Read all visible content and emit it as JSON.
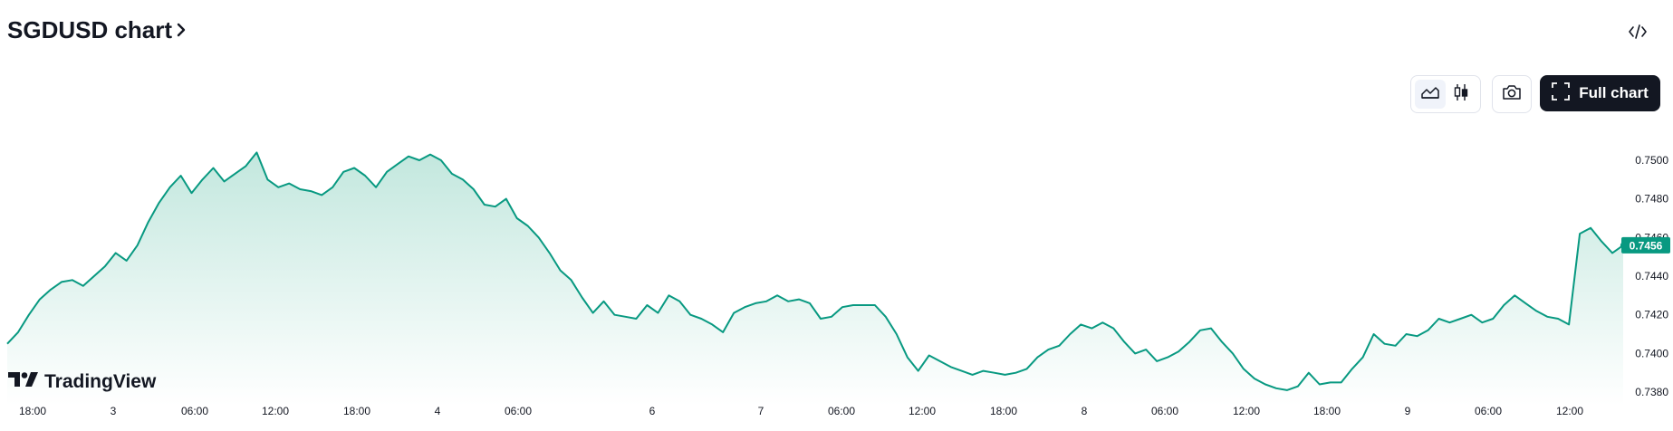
{
  "header": {
    "title": "SGDUSD chart",
    "title_chevron_icon": "chevron-right-icon",
    "embed_icon": "code-icon"
  },
  "toolbar": {
    "area_icon": "area-chart-icon",
    "candles_icon": "candlestick-icon",
    "snapshot_icon": "camera-icon",
    "full_chart_label": "Full chart",
    "full_chart_icon": "fullscreen-icon"
  },
  "brand": {
    "name": "TradingView",
    "logo_icon": "tradingview-logo-icon"
  },
  "colors": {
    "line": "#089981",
    "area_top": "#bfe6dc",
    "area_bottom": "#ffffff",
    "badge": "#089981"
  },
  "chart_data": {
    "type": "area",
    "series": [
      {
        "values": [
          0.7405,
          0.7411,
          0.742,
          0.7428,
          0.7433,
          0.7437,
          0.7438,
          0.7435,
          0.744,
          0.7445,
          0.7452,
          0.7448,
          0.7456,
          0.7468,
          0.7478,
          0.7486,
          0.7492,
          0.7483,
          0.749,
          0.7496,
          0.7489,
          0.7493,
          0.7497,
          0.7504,
          0.749,
          0.7486,
          0.7488,
          0.7485,
          0.7484,
          0.7482,
          0.7486,
          0.7494,
          0.7496,
          0.7492,
          0.7486,
          0.7494,
          0.7498,
          0.7502,
          0.75,
          0.7503,
          0.75,
          0.7493,
          0.749,
          0.7485,
          0.7477,
          0.7476,
          0.748,
          0.747,
          0.7466,
          0.746,
          0.7452,
          0.7443,
          0.7438,
          0.7429,
          0.7421,
          0.7427,
          0.742,
          0.7419,
          0.7418,
          0.7425,
          0.7421,
          0.743,
          0.7427,
          0.742,
          0.7418,
          0.7415,
          0.7411,
          0.7421,
          0.7424,
          0.7426,
          0.7427,
          0.743,
          0.7427,
          0.7428,
          0.7426,
          0.7418,
          0.7419,
          0.7424,
          0.7425,
          0.7425,
          0.7425,
          0.7419,
          0.741,
          0.7398,
          0.7391,
          0.7399,
          0.7396,
          0.7393,
          0.7391,
          0.7389,
          0.7391,
          0.739,
          0.7389,
          0.739,
          0.7392,
          0.7398,
          0.7402,
          0.7404,
          0.741,
          0.7415,
          0.7413,
          0.7416,
          0.7413,
          0.7406,
          0.74,
          0.7402,
          0.7396,
          0.7398,
          0.7401,
          0.7406,
          0.7412,
          0.7413,
          0.7406,
          0.74,
          0.7392,
          0.7387,
          0.7384,
          0.7382,
          0.7381,
          0.7383,
          0.739,
          0.7384,
          0.7385,
          0.7385,
          0.7392,
          0.7398,
          0.741,
          0.7405,
          0.7404,
          0.741,
          0.7409,
          0.7412,
          0.7418,
          0.7416,
          0.7418,
          0.742,
          0.7416,
          0.7418,
          0.7425,
          0.743,
          0.7426,
          0.7422,
          0.7419,
          0.7418,
          0.7415,
          0.7462,
          0.7465,
          0.7458,
          0.7452,
          0.7456
        ],
        "x_range": [
          "2 17:00",
          "9 14:00"
        ]
      }
    ],
    "x_ticks": [
      "18:00",
      "3",
      "06:00",
      "12:00",
      "18:00",
      "4",
      "06:00",
      "6",
      "7",
      "06:00",
      "12:00",
      "18:00",
      "8",
      "06:00",
      "12:00",
      "18:00",
      "9",
      "06:00",
      "12:00"
    ],
    "y_ticks": [
      "0.7380",
      "0.7400",
      "0.7420",
      "0.7440",
      "0.7460",
      "0.7480",
      "0.7500"
    ],
    "ylim": [
      0.7373,
      0.7522
    ],
    "last_value_label": "0.7456",
    "last_value": 0.7456,
    "grid": false
  }
}
